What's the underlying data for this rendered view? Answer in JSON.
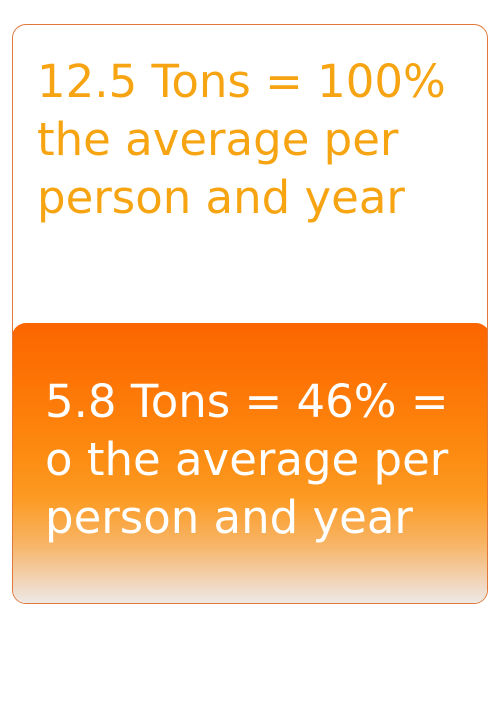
{
  "top_card": {
    "lines": [
      "12.5 Tons = 100%",
      "the average per",
      "person and year"
    ]
  },
  "bottom_card": {
    "lines": [
      "5.8 Tons = 46% =",
      "o the average per",
      "person and year"
    ]
  },
  "colors": {
    "top_text": "#f7a412",
    "border": "#e2793a",
    "bottom_gradient_top": "#fc6500",
    "bottom_gradient_bottom": "#ececec",
    "bottom_text": "#ffffff"
  }
}
